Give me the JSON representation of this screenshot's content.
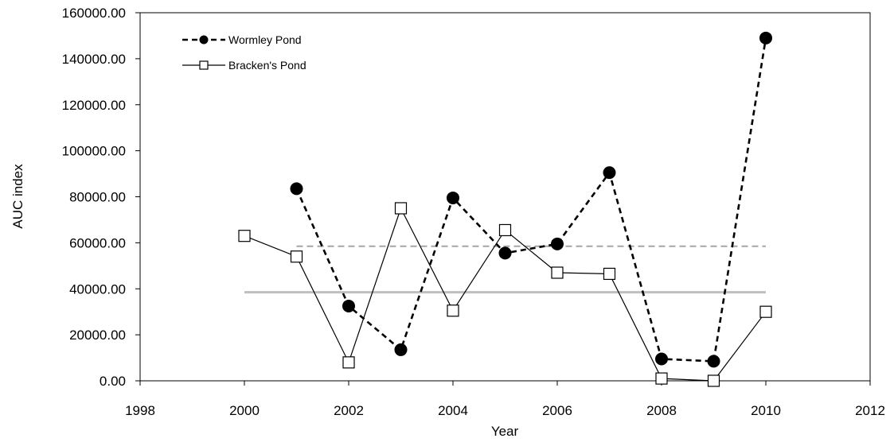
{
  "chart_data": {
    "type": "line",
    "xlabel": "Year",
    "ylabel": "AUC index",
    "xlim": [
      1998,
      2012
    ],
    "ylim": [
      0,
      160000
    ],
    "xticks": [
      1998,
      2000,
      2002,
      2004,
      2006,
      2008,
      2010,
      2012
    ],
    "yticks": [
      0,
      20000,
      40000,
      60000,
      80000,
      100000,
      120000,
      140000,
      160000
    ],
    "xtick_labels": [
      "1998",
      "2000",
      "2002",
      "2004",
      "2006",
      "2008",
      "2010",
      "2012"
    ],
    "ytick_labels": [
      "0.00",
      "20000.00",
      "40000.00",
      "60000.00",
      "80000.00",
      "100000.00",
      "120000.00",
      "140000.00",
      "160000.00"
    ],
    "grid": false,
    "legend_position": "top-left",
    "series": [
      {
        "name": "Wormley Pond",
        "style": "dashed",
        "marker": "filled-circle",
        "color": "#000000",
        "x": [
          2001,
          2002,
          2003,
          2004,
          2005,
          2006,
          2007,
          2008,
          2009,
          2010
        ],
        "y": [
          83500,
          32500,
          13500,
          79500,
          55500,
          59500,
          90500,
          9500,
          8500,
          149000
        ]
      },
      {
        "name": "Bracken's Pond",
        "style": "solid",
        "marker": "open-square",
        "color": "#000000",
        "x": [
          2000,
          2001,
          2002,
          2003,
          2004,
          2005,
          2006,
          2007,
          2008,
          2009,
          2010
        ],
        "y": [
          63000,
          54000,
          8000,
          75000,
          30500,
          65500,
          47000,
          46500,
          1000,
          0,
          30000
        ]
      }
    ],
    "reference_lines": [
      {
        "style": "dashed",
        "color": "#a6a6a6",
        "y": 58500,
        "x_range": [
          2001,
          2010
        ]
      },
      {
        "style": "solid",
        "color": "#bfbfbf",
        "y": 38500,
        "x_range": [
          2000,
          2010
        ]
      }
    ]
  }
}
